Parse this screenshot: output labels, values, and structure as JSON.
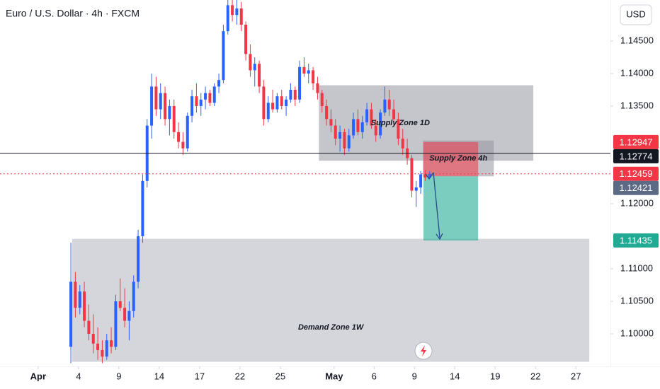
{
  "chart_data": {
    "type": "candlestick",
    "title": "Euro / U.S. Dollar · 4h · FXCM",
    "currency": "USD",
    "up_color": "#2962ff",
    "down_color": "#f23645",
    "ylim": [
      1.095,
      1.1513
    ],
    "xlim": [
      -15.8,
      120.3
    ],
    "yticks": [
      {
        "value": 1.145,
        "label": "1.14500"
      },
      {
        "value": 1.14,
        "label": "1.14000"
      },
      {
        "value": 1.135,
        "label": "1.13500"
      },
      {
        "value": 1.12,
        "label": "1.12000"
      },
      {
        "value": 1.11,
        "label": "1.11000"
      },
      {
        "value": 1.105,
        "label": "1.10500"
      },
      {
        "value": 1.1,
        "label": "1.10000"
      }
    ],
    "xticks": [
      {
        "value": -7.3,
        "label": "Apr"
      },
      {
        "value": 1.7,
        "label": "4"
      },
      {
        "value": 10.7,
        "label": "9"
      },
      {
        "value": 19.7,
        "label": "14"
      },
      {
        "value": 28.7,
        "label": "17"
      },
      {
        "value": 37.7,
        "label": "22"
      },
      {
        "value": 46.7,
        "label": "25"
      },
      {
        "value": 58.7,
        "label": "May"
      },
      {
        "value": 67.6,
        "label": "6"
      },
      {
        "value": 76.6,
        "label": "9"
      },
      {
        "value": 85.6,
        "label": "14"
      },
      {
        "value": 94.6,
        "label": "19"
      },
      {
        "value": 103.6,
        "label": "22"
      },
      {
        "value": 112.6,
        "label": "27"
      }
    ],
    "ohlc": [
      [
        1.098,
        1.114,
        1.0955,
        1.108
      ],
      [
        1.108,
        1.1095,
        1.1025,
        1.104
      ],
      [
        1.104,
        1.1075,
        1.103,
        1.1065
      ],
      [
        1.1065,
        1.108,
        1.101,
        1.102
      ],
      [
        1.102,
        1.1045,
        1.099,
        1.1
      ],
      [
        1.1,
        1.103,
        1.097,
        1.0985
      ],
      [
        1.0985,
        1.101,
        1.096,
        1.0975
      ],
      [
        1.0975,
        1.099,
        1.0955,
        1.0965
      ],
      [
        1.0965,
        1.1,
        1.096,
        1.099
      ],
      [
        1.099,
        1.101,
        1.097,
        1.098
      ],
      [
        1.098,
        1.106,
        1.0975,
        1.105
      ],
      [
        1.105,
        1.1085,
        1.1035,
        1.104
      ],
      [
        1.104,
        1.107,
        1.101,
        1.102
      ],
      [
        1.102,
        1.105,
        1.099,
        1.1035
      ],
      [
        1.1035,
        1.109,
        1.1025,
        1.108
      ],
      [
        1.108,
        1.116,
        1.107,
        1.115
      ],
      [
        1.115,
        1.1245,
        1.114,
        1.1235
      ],
      [
        1.1235,
        1.133,
        1.1225,
        1.132
      ],
      [
        1.132,
        1.14,
        1.13,
        1.138
      ],
      [
        1.138,
        1.1395,
        1.1335,
        1.1345
      ],
      [
        1.1345,
        1.1385,
        1.133,
        1.137
      ],
      [
        1.137,
        1.138,
        1.132,
        1.133
      ],
      [
        1.133,
        1.136,
        1.1305,
        1.135
      ],
      [
        1.135,
        1.136,
        1.13,
        1.131
      ],
      [
        1.131,
        1.1325,
        1.1285,
        1.1295
      ],
      [
        1.1295,
        1.131,
        1.1275,
        1.1285
      ],
      [
        1.1285,
        1.134,
        1.128,
        1.1335
      ],
      [
        1.1335,
        1.1375,
        1.1325,
        1.1365
      ],
      [
        1.1365,
        1.1385,
        1.134,
        1.135
      ],
      [
        1.135,
        1.137,
        1.1335,
        1.136
      ],
      [
        1.136,
        1.138,
        1.1345,
        1.137
      ],
      [
        1.137,
        1.1375,
        1.135,
        1.1355
      ],
      [
        1.1355,
        1.1385,
        1.135,
        1.138
      ],
      [
        1.138,
        1.14,
        1.137,
        1.139
      ],
      [
        1.139,
        1.1475,
        1.1385,
        1.1465
      ],
      [
        1.1465,
        1.1513,
        1.146,
        1.1505
      ],
      [
        1.1505,
        1.1513,
        1.148,
        1.149
      ],
      [
        1.149,
        1.1513,
        1.1475,
        1.15
      ],
      [
        1.15,
        1.151,
        1.1465,
        1.1475
      ],
      [
        1.1475,
        1.148,
        1.142,
        1.143
      ],
      [
        1.143,
        1.1445,
        1.1395,
        1.1405
      ],
      [
        1.1405,
        1.1425,
        1.138,
        1.1415
      ],
      [
        1.1415,
        1.142,
        1.137,
        1.138
      ],
      [
        1.138,
        1.139,
        1.132,
        1.133
      ],
      [
        1.133,
        1.1365,
        1.1325,
        1.1355
      ],
      [
        1.1355,
        1.1375,
        1.134,
        1.1345
      ],
      [
        1.1345,
        1.137,
        1.134,
        1.1365
      ],
      [
        1.1365,
        1.1375,
        1.1345,
        1.135
      ],
      [
        1.135,
        1.1365,
        1.1335,
        1.136
      ],
      [
        1.136,
        1.1385,
        1.1355,
        1.1375
      ],
      [
        1.1375,
        1.138,
        1.135,
        1.136
      ],
      [
        1.136,
        1.142,
        1.1355,
        1.141
      ],
      [
        1.141,
        1.1425,
        1.1395,
        1.14
      ],
      [
        1.14,
        1.1415,
        1.1385,
        1.1405
      ],
      [
        1.1405,
        1.141,
        1.1375,
        1.1385
      ],
      [
        1.1385,
        1.1395,
        1.136,
        1.137
      ],
      [
        1.137,
        1.1375,
        1.134,
        1.135
      ],
      [
        1.135,
        1.136,
        1.132,
        1.133
      ],
      [
        1.133,
        1.1345,
        1.131,
        1.132
      ],
      [
        1.132,
        1.133,
        1.129,
        1.13
      ],
      [
        1.13,
        1.132,
        1.128,
        1.131
      ],
      [
        1.131,
        1.1315,
        1.1275,
        1.1285
      ],
      [
        1.1285,
        1.1315,
        1.128,
        1.1305
      ],
      [
        1.1305,
        1.134,
        1.13,
        1.133
      ],
      [
        1.133,
        1.1345,
        1.1305,
        1.131
      ],
      [
        1.131,
        1.1335,
        1.13,
        1.1325
      ],
      [
        1.1325,
        1.1355,
        1.132,
        1.1345
      ],
      [
        1.1345,
        1.1355,
        1.1315,
        1.132
      ],
      [
        1.132,
        1.133,
        1.1295,
        1.1305
      ],
      [
        1.1305,
        1.1345,
        1.13,
        1.134
      ],
      [
        1.134,
        1.138,
        1.1335,
        1.136
      ],
      [
        1.136,
        1.1375,
        1.1335,
        1.1345
      ],
      [
        1.1345,
        1.136,
        1.132,
        1.133
      ],
      [
        1.133,
        1.134,
        1.129,
        1.13
      ],
      [
        1.13,
        1.1315,
        1.1275,
        1.1285
      ],
      [
        1.1285,
        1.13,
        1.126,
        1.127
      ],
      [
        1.127,
        1.1275,
        1.121,
        1.122
      ],
      [
        1.122,
        1.1235,
        1.1195,
        1.1225
      ],
      [
        1.1225,
        1.125,
        1.1215,
        1.1245
      ],
      [
        1.1245,
        1.1252,
        1.1235,
        1.124
      ],
      [
        1.124,
        1.125,
        1.1238,
        1.12459
      ]
    ],
    "zones": [
      {
        "label": "Supply Zone 1D",
        "top": 1.1382,
        "bottom": 1.1266,
        "start": 55.3,
        "end": 103.1,
        "color": "#9598a1"
      },
      {
        "label": "Supply Zone 4h",
        "top": 1.1297,
        "bottom": 1.1242,
        "start": 78.5,
        "end": 94.3,
        "color": "#9598a1"
      },
      {
        "label": "Demand Zone 1W",
        "top": 1.1146,
        "bottom": 1.0957,
        "start": 0.3,
        "end": 115.6,
        "color": "#b2b5be"
      }
    ],
    "position": {
      "start": 78.6,
      "end": 90.8,
      "stop": 1.12947,
      "entry": 1.12421,
      "target": 1.11435,
      "stop_color": "#f23645",
      "entry_color": "#5d6a85",
      "target_color": "#22ab94"
    },
    "hline": {
      "value": 1.12774,
      "color": "#131722"
    },
    "last_price": {
      "value": 1.12459,
      "color": "#f23645"
    }
  }
}
